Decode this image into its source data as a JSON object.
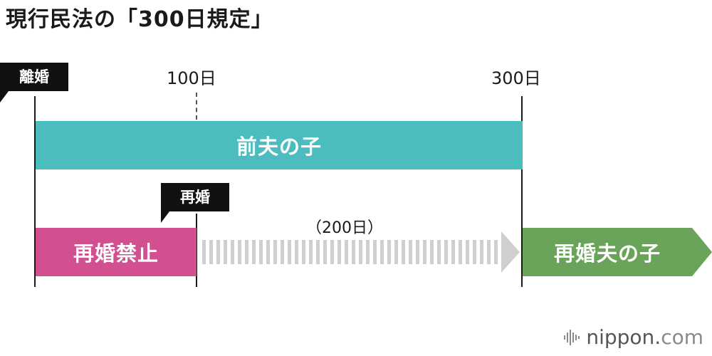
{
  "title": "現行民法の「300日規定」",
  "markers": {
    "divorce": "離婚",
    "remarriage": "再婚",
    "day100": "100日",
    "day300": "300日"
  },
  "bars": {
    "former_husband_child": "前夫の子",
    "remarriage_ban": "再婚禁止",
    "new_husband_child": "再婚夫の子"
  },
  "duration_label": "（200日）",
  "logo": {
    "name": "nippon",
    "dot": ".",
    "tld": "com"
  },
  "colors": {
    "teal": "#4bbdbf",
    "pink": "#d2508f",
    "green": "#6aa35a",
    "hatch": "#cfcfcf"
  }
}
